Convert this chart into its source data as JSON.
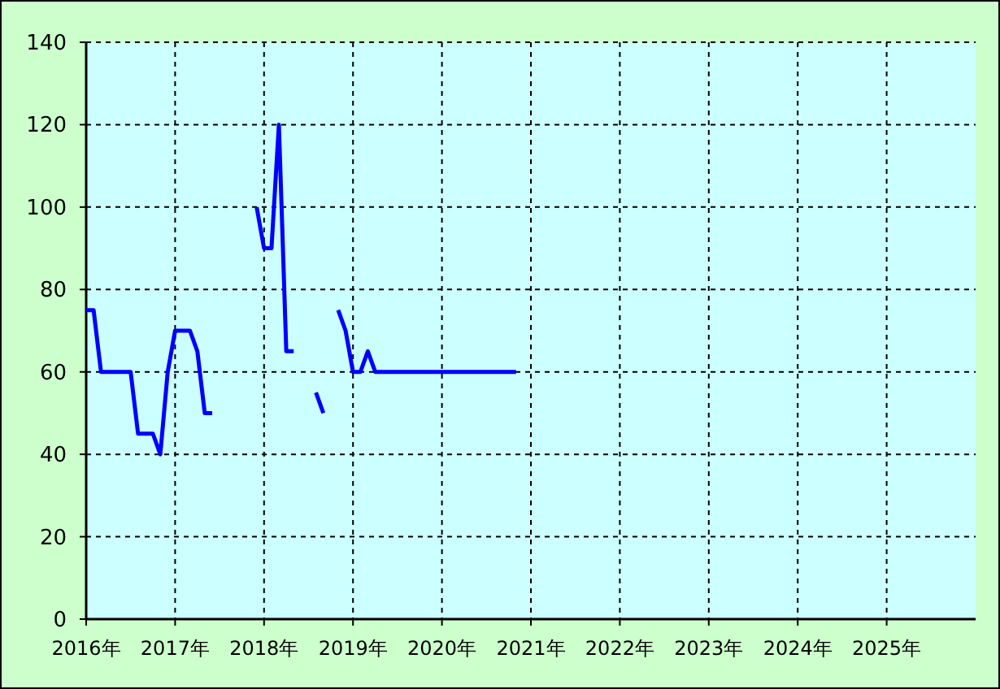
{
  "chart_data": {
    "type": "line",
    "x": [
      "2016-01",
      "2016-02",
      "2016-03",
      "2016-04",
      "2016-05",
      "2016-06",
      "2016-07",
      "2016-08",
      "2016-09",
      "2016-10",
      "2016-11",
      "2016-12",
      "2017-01",
      "2017-02",
      "2017-03",
      "2017-04",
      "2017-05",
      "2017-06",
      "2017-07",
      "2017-08",
      "2017-09",
      "2017-10",
      "2017-11",
      "2017-12",
      "2018-01",
      "2018-02",
      "2018-03",
      "2018-04",
      "2018-05",
      "2018-06",
      "2018-07",
      "2018-08",
      "2018-09",
      "2018-10",
      "2018-11",
      "2018-12",
      "2019-01",
      "2019-02",
      "2019-03",
      "2019-04",
      "2019-05",
      "2019-06",
      "2019-07",
      "2019-08",
      "2019-09",
      "2019-10",
      "2019-11",
      "2019-12",
      "2020-01",
      "2020-02",
      "2020-03",
      "2020-04",
      "2020-05",
      "2020-06",
      "2020-07",
      "2020-08",
      "2020-09",
      "2020-10",
      "2020-11"
    ],
    "series": [
      {
        "color": "#0000ff",
        "values": [
          75,
          75,
          60,
          60,
          60,
          60,
          60,
          45,
          45,
          45,
          40,
          60,
          70,
          70,
          70,
          65,
          50,
          50,
          null,
          null,
          null,
          null,
          null,
          100,
          90,
          90,
          120,
          65,
          65,
          null,
          null,
          55,
          50,
          null,
          75,
          70,
          60,
          60,
          65,
          60,
          60,
          60,
          60,
          60,
          60,
          60,
          60,
          60,
          60,
          60,
          60,
          60,
          60,
          60,
          60,
          60,
          60,
          60,
          60
        ]
      }
    ],
    "xlim": [
      "2016-01",
      "2026-01"
    ],
    "xticks": [
      {
        "value": "2016-01",
        "label": "2016年"
      },
      {
        "value": "2017-01",
        "label": "2017年"
      },
      {
        "value": "2018-01",
        "label": "2018年"
      },
      {
        "value": "2019-01",
        "label": "2019年"
      },
      {
        "value": "2020-01",
        "label": "2020年"
      },
      {
        "value": "2021-01",
        "label": "2021年"
      },
      {
        "value": "2022-01",
        "label": "2022年"
      },
      {
        "value": "2023-01",
        "label": "2023年"
      },
      {
        "value": "2024-01",
        "label": "2024年"
      },
      {
        "value": "2025-01",
        "label": "2025年"
      }
    ],
    "ylim": [
      0,
      140
    ],
    "yticks": [
      0,
      20,
      40,
      60,
      80,
      100,
      120,
      140
    ],
    "grid": true,
    "line_style": "solid"
  }
}
